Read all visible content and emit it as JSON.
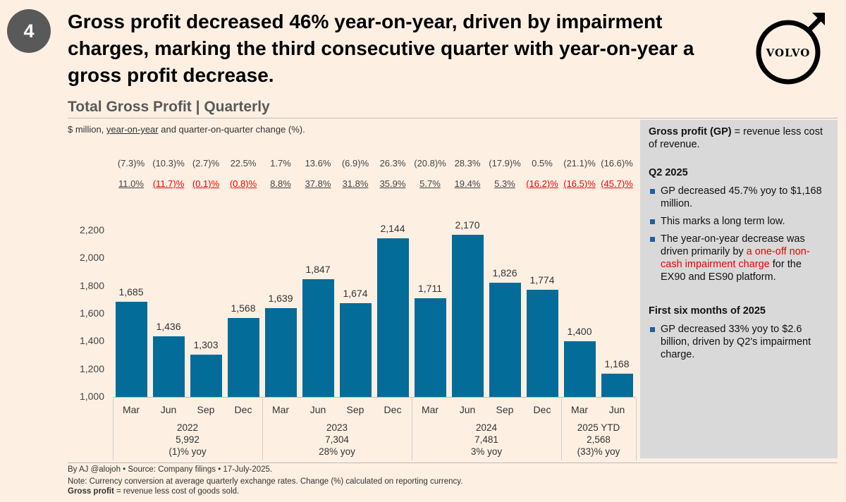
{
  "badge": "4",
  "headline": "Gross profit decreased 46% year-on-year, driven by impairment charges, marking the third consecutive quarter with year-on-year a gross profit decrease.",
  "logo_text": "VOLVO",
  "subtitle": "Total Gross Profit | Quarterly",
  "units": {
    "a": "$ million, ",
    "b": "year-on-year",
    "c": " and quarter-on-quarter change (%)."
  },
  "colors": {
    "bar": "#046c98",
    "negative": "#e00000",
    "panel": "#d9d9d9",
    "background": "#fdf0e3"
  },
  "chart_data": {
    "type": "bar",
    "title": "Total Gross Profit | Quarterly",
    "ylabel": "$ million",
    "ylim": [
      1000,
      2200
    ],
    "yticks": [
      "1,000",
      "1,200",
      "1,400",
      "1,600",
      "1,800",
      "2,000",
      "2,200"
    ],
    "categories": [
      "Mar",
      "Jun",
      "Sep",
      "Dec",
      "Mar",
      "Jun",
      "Sep",
      "Dec",
      "Mar",
      "Jun",
      "Sep",
      "Dec",
      "Mar",
      "Jun"
    ],
    "values": [
      1685,
      1436,
      1303,
      1568,
      1639,
      1847,
      1674,
      2144,
      1711,
      2170,
      1826,
      1774,
      1400,
      1168
    ],
    "value_labels": [
      "1,685",
      "1,436",
      "1,303",
      "1,568",
      "1,639",
      "1,847",
      "1,674",
      "2,144",
      "1,711",
      "2,170",
      "1,826",
      "1,774",
      "1,400",
      "1,168"
    ],
    "qoq": [
      "(7.3)%",
      "(10.3)%",
      "(2.7)%",
      "22.5%",
      "1.7%",
      "13.6%",
      "(6.9)%",
      "26.3%",
      "(20.8)%",
      "28.3%",
      "(17.9)%",
      "0.5%",
      "(21.1)%",
      "(16.6)%"
    ],
    "yoy": [
      "11.0%",
      "(11.7)%",
      "(0.1)%",
      "(0.8)%",
      "8.8%",
      "37.8%",
      "31.8%",
      "35.9%",
      "5.7%",
      "19.4%",
      "5.3%",
      "(16.2)%",
      "(16.5)%",
      "(45.7)%"
    ],
    "groups": [
      {
        "year": "2022",
        "total": "5,992",
        "yoy": "(1)% yoy"
      },
      {
        "year": "2023",
        "total": "7,304",
        "yoy": "28% yoy"
      },
      {
        "year": "2024",
        "total": "7,481",
        "yoy": "3% yoy"
      },
      {
        "year": "2025 YTD",
        "total": "2,568",
        "yoy": "(33)% yoy"
      }
    ]
  },
  "panel": {
    "def_bold": "Gross profit (GP)",
    "def_rest": " = revenue less cost of revenue.",
    "q2_title": "Q2 2025",
    "q2_b1": "GP decreased 45.7% yoy to $1,168 million.",
    "q2_b2": "This marks a long term low.",
    "q2_b3a": "The year-on-year decrease was driven primarily by ",
    "q2_b3b": "a one-off non-cash impairment charge",
    "q2_b3c": " for the EX90 and ES90 platform.",
    "h1_title": "First six months of 2025",
    "h1_b1": "GP decreased 33% yoy to $2.6 billion, driven by Q2's impairment charge."
  },
  "footer": {
    "line1": "By AJ @alojoh • Source: Company filings • 17-July-2025.",
    "line2": "Note: Currency conversion at average quarterly exchange rates. Change (%) calculated on reporting currency.",
    "line3_bold": "Gross profit",
    "line3_rest": " = revenue less cost of goods sold."
  }
}
